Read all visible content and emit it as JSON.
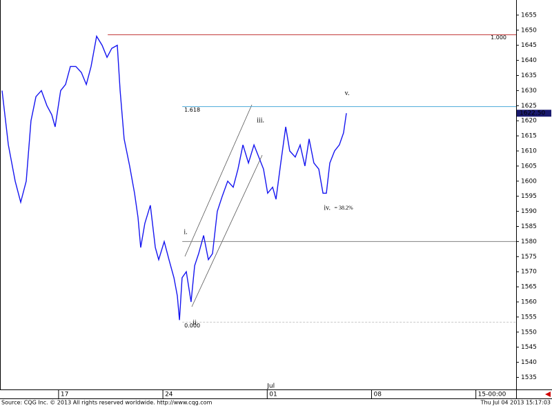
{
  "chart_data": {
    "type": "line",
    "series": [
      {
        "name": "Price",
        "color": "#1414f0",
        "x": [
          13.21,
          13.63,
          14.09,
          14.46,
          14.83,
          15.15,
          15.48,
          15.85,
          16.22,
          16.54,
          16.77,
          17.14,
          17.47,
          17.79,
          18.16,
          18.53,
          18.86,
          19.18,
          19.55,
          19.92,
          20.25,
          20.57,
          20.94,
          21.13,
          21.4,
          21.77,
          22.1,
          22.33,
          22.51,
          22.79,
          23.16,
          23.49,
          23.72,
          24.09,
          24.41,
          24.74,
          24.97,
          25.11,
          25.29,
          25.57,
          25.89,
          26.13,
          26.4,
          26.73,
          27.05,
          27.33,
          27.65,
          27.98,
          28.35,
          28.72,
          29.04,
          29.37,
          29.74,
          30.11,
          30.43,
          30.75,
          31.03,
          31.36,
          31.59,
          31.91,
          32.24,
          32.51,
          32.88,
          33.21,
          33.53,
          33.81,
          34.13,
          34.46,
          34.74,
          34.97,
          35.2,
          35.52,
          35.84,
          36.12,
          36.31
        ],
        "values": [
          1630,
          1612,
          1600,
          1593,
          1600,
          1620,
          1628,
          1630,
          1625,
          1622,
          1618,
          1630,
          1632,
          1638,
          1638,
          1636,
          1632,
          1638,
          1648,
          1645,
          1641,
          1644,
          1645,
          1630,
          1614,
          1605,
          1596,
          1588,
          1578,
          1586,
          1592,
          1578,
          1574,
          1580,
          1574,
          1568,
          1562,
          1554,
          1568,
          1570,
          1560,
          1572,
          1576,
          1582,
          1574,
          1576,
          1590,
          1595,
          1600,
          1598,
          1604,
          1612,
          1606,
          1612,
          1608,
          1604,
          1596,
          1598,
          1594,
          1606,
          1618,
          1610,
          1608,
          1612,
          1605,
          1614,
          1606,
          1604,
          1596,
          1596,
          1606,
          1610,
          1612,
          1616,
          1622.5
        ]
      }
    ],
    "xlim": [
      13.07,
      47.7
    ],
    "xticks": [
      17,
      24,
      {
        "value": 31,
        "label": "01"
      },
      {
        "value": 38,
        "label": "08"
      },
      {
        "value": 45,
        "label": "15-00:00"
      }
    ],
    "month_label": "Jul",
    "ylim": [
      1531,
      1660
    ],
    "yticks": [
      1535,
      1540,
      1545,
      1550,
      1555,
      1560,
      1565,
      1570,
      1575,
      1580,
      1585,
      1590,
      1595,
      1600,
      1605,
      1610,
      1615,
      1620,
      1625,
      1630,
      1635,
      1640,
      1645,
      1650,
      1655
    ],
    "last_price": {
      "value": 1622.5,
      "label": "1622.50"
    },
    "levels": [
      {
        "value": 1648.5,
        "label": "1.000",
        "color": "#c03030",
        "start": 20.3
      },
      {
        "value": 1624.7,
        "label": "1.618",
        "color": "#4aa8d8",
        "start": 25.3
      },
      {
        "value": 1580,
        "color": "#808080",
        "start": 25.3
      },
      {
        "value": 1553.3,
        "label": "0.000",
        "color": "#c8c8c8",
        "start": 25.3
      }
    ],
    "annotations": [
      {
        "text": "i.",
        "x": 25.4,
        "y": 1583
      },
      {
        "text": "ii.",
        "x": 26.0,
        "y": 1553
      },
      {
        "text": "iii.",
        "x": 30.3,
        "y": 1620
      },
      {
        "text": "iv.",
        "x": 34.8,
        "y": 1591
      },
      {
        "text": "= 38.2%",
        "x": 35.5,
        "y": 1591
      },
      {
        "text": "v.",
        "x": 36.2,
        "y": 1629
      }
    ],
    "source": "Source: CQG Inc. © 2013 All rights reserved worldwide. http://www.cqg.com",
    "timestamp": "Thu Jul 04 2013 15:17:03"
  }
}
